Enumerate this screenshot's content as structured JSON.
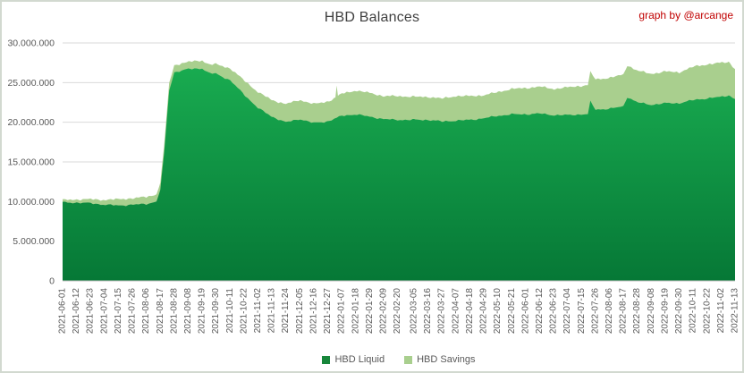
{
  "title": "HBD Balances",
  "credit": "graph by @arcange",
  "colors": {
    "title_text": "#404040",
    "credit_text": "#c00000",
    "grid": "#d9d9d9",
    "axis": "#bfbfbf",
    "tick_text": "#595959",
    "frame_border": "#d2d9d0",
    "liquid_legend": "#17863b",
    "savings_fill": "#a9cf8e"
  },
  "chart_data": {
    "type": "area",
    "stacked": true,
    "title": "HBD Balances",
    "xlabel": "",
    "ylabel": "",
    "grid": true,
    "legend_position": "bottom",
    "ylim": [
      0,
      30000000
    ],
    "y_tick_values": [
      0,
      5000000,
      10000000,
      15000000,
      20000000,
      25000000,
      30000000
    ],
    "y_tick_labels": [
      "0",
      "5.000.000",
      "10.000.000",
      "15.000.000",
      "20.000.000",
      "25.000.000",
      "30.000.000"
    ],
    "x_range": [
      "2021-06-01",
      "2022-11-13"
    ],
    "x_tick_labels": [
      "2021-06-01",
      "2021-06-12",
      "2021-06-23",
      "2021-07-04",
      "2021-07-15",
      "2021-07-26",
      "2021-08-06",
      "2021-08-17",
      "2021-08-28",
      "2021-09-08",
      "2021-09-19",
      "2021-09-30",
      "2021-10-11",
      "2021-10-22",
      "2021-11-02",
      "2021-11-13",
      "2021-11-24",
      "2021-12-05",
      "2021-12-16",
      "2021-12-27",
      "2022-01-07",
      "2022-01-18",
      "2022-01-29",
      "2022-02-09",
      "2022-02-20",
      "2022-03-05",
      "2022-03-16",
      "2022-03-27",
      "2022-04-07",
      "2022-04-18",
      "2022-04-29",
      "2022-05-10",
      "2022-05-21",
      "2022-06-01",
      "2022-06-12",
      "2022-06-23",
      "2022-07-04",
      "2022-07-15",
      "2022-07-26",
      "2022-08-06",
      "2022-08-17",
      "2022-08-28",
      "2022-09-08",
      "2022-09-19",
      "2022-09-30",
      "2022-10-11",
      "2022-10-22",
      "2022-11-02",
      "2022-11-13"
    ],
    "series": [
      {
        "name": "HBD Liquid",
        "color": "#17863b",
        "gradient_top": "#1bb153",
        "gradient_bottom": "#067836",
        "points": [
          [
            "2021-06-01",
            9900000
          ],
          [
            "2021-06-12",
            9850000
          ],
          [
            "2021-06-23",
            9800000
          ],
          [
            "2021-07-04",
            9600000
          ],
          [
            "2021-07-15",
            9500000
          ],
          [
            "2021-07-26",
            9600000
          ],
          [
            "2021-08-06",
            9700000
          ],
          [
            "2021-08-14",
            10000000
          ],
          [
            "2021-08-17",
            11500000
          ],
          [
            "2021-08-20",
            16000000
          ],
          [
            "2021-08-24",
            24000000
          ],
          [
            "2021-08-28",
            26300000
          ],
          [
            "2021-09-08",
            26700000
          ],
          [
            "2021-09-19",
            26800000
          ],
          [
            "2021-09-24",
            26200000
          ],
          [
            "2021-09-30",
            26100000
          ],
          [
            "2021-10-11",
            25300000
          ],
          [
            "2021-10-22",
            23500000
          ],
          [
            "2021-11-02",
            21800000
          ],
          [
            "2021-11-13",
            20700000
          ],
          [
            "2021-11-24",
            20000000
          ],
          [
            "2021-12-05",
            20400000
          ],
          [
            "2021-12-16",
            19900000
          ],
          [
            "2021-12-27",
            20100000
          ],
          [
            "2022-01-07",
            20800000
          ],
          [
            "2022-01-18",
            21000000
          ],
          [
            "2022-01-29",
            20700000
          ],
          [
            "2022-02-09",
            20400000
          ],
          [
            "2022-02-20",
            20300000
          ],
          [
            "2022-03-05",
            20300000
          ],
          [
            "2022-03-16",
            20300000
          ],
          [
            "2022-03-27",
            20100000
          ],
          [
            "2022-04-07",
            20200000
          ],
          [
            "2022-04-18",
            20300000
          ],
          [
            "2022-04-29",
            20500000
          ],
          [
            "2022-05-10",
            20800000
          ],
          [
            "2022-05-21",
            21000000
          ],
          [
            "2022-06-01",
            21000000
          ],
          [
            "2022-06-12",
            21100000
          ],
          [
            "2022-06-23",
            20900000
          ],
          [
            "2022-07-04",
            20900000
          ],
          [
            "2022-07-15",
            21000000
          ],
          [
            "2022-07-20",
            21000000
          ],
          [
            "2022-07-22",
            22600000
          ],
          [
            "2022-07-26",
            21600000
          ],
          [
            "2022-08-06",
            21700000
          ],
          [
            "2022-08-17",
            22000000
          ],
          [
            "2022-08-20",
            23200000
          ],
          [
            "2022-08-28",
            22500000
          ],
          [
            "2022-09-08",
            22200000
          ],
          [
            "2022-09-19",
            22400000
          ],
          [
            "2022-09-30",
            22400000
          ],
          [
            "2022-10-11",
            22800000
          ],
          [
            "2022-10-22",
            23000000
          ],
          [
            "2022-11-02",
            23200000
          ],
          [
            "2022-11-08",
            23400000
          ],
          [
            "2022-11-13",
            22900000
          ]
        ]
      },
      {
        "name": "HBD Savings",
        "color": "#a9cf8e",
        "points": [
          [
            "2021-06-01",
            300000
          ],
          [
            "2021-06-12",
            400000
          ],
          [
            "2021-06-23",
            500000
          ],
          [
            "2021-07-04",
            600000
          ],
          [
            "2021-07-15",
            800000
          ],
          [
            "2021-07-26",
            800000
          ],
          [
            "2021-08-06",
            900000
          ],
          [
            "2021-08-17",
            900000
          ],
          [
            "2021-08-28",
            900000
          ],
          [
            "2021-09-08",
            900000
          ],
          [
            "2021-09-19",
            1000000
          ],
          [
            "2021-09-30",
            1200000
          ],
          [
            "2021-10-11",
            1500000
          ],
          [
            "2021-10-22",
            1800000
          ],
          [
            "2021-11-02",
            2000000
          ],
          [
            "2021-11-13",
            2100000
          ],
          [
            "2021-11-24",
            2300000
          ],
          [
            "2021-12-05",
            2400000
          ],
          [
            "2021-12-16",
            2400000
          ],
          [
            "2021-12-27",
            2500000
          ],
          [
            "2022-01-02",
            2600000
          ],
          [
            "2022-01-03",
            4100000
          ],
          [
            "2022-01-04",
            2700000
          ],
          [
            "2022-01-07",
            2800000
          ],
          [
            "2022-01-18",
            3000000
          ],
          [
            "2022-01-29",
            3000000
          ],
          [
            "2022-02-09",
            2900000
          ],
          [
            "2022-02-20",
            3000000
          ],
          [
            "2022-03-05",
            2900000
          ],
          [
            "2022-03-16",
            2900000
          ],
          [
            "2022-03-27",
            2900000
          ],
          [
            "2022-04-07",
            3100000
          ],
          [
            "2022-04-18",
            3000000
          ],
          [
            "2022-04-29",
            2900000
          ],
          [
            "2022-05-10",
            3000000
          ],
          [
            "2022-05-21",
            3200000
          ],
          [
            "2022-06-01",
            3300000
          ],
          [
            "2022-06-12",
            3400000
          ],
          [
            "2022-06-23",
            3300000
          ],
          [
            "2022-07-04",
            3500000
          ],
          [
            "2022-07-15",
            3600000
          ],
          [
            "2022-07-26",
            3800000
          ],
          [
            "2022-08-06",
            3900000
          ],
          [
            "2022-08-17",
            4000000
          ],
          [
            "2022-08-28",
            4000000
          ],
          [
            "2022-09-08",
            3900000
          ],
          [
            "2022-09-19",
            4000000
          ],
          [
            "2022-09-30",
            3900000
          ],
          [
            "2022-10-11",
            4200000
          ],
          [
            "2022-10-22",
            4300000
          ],
          [
            "2022-11-02",
            4300000
          ],
          [
            "2022-11-08",
            4200000
          ],
          [
            "2022-11-13",
            3800000
          ]
        ]
      }
    ]
  },
  "legend": {
    "liquid_label": "HBD Liquid",
    "savings_label": "HBD Savings"
  }
}
